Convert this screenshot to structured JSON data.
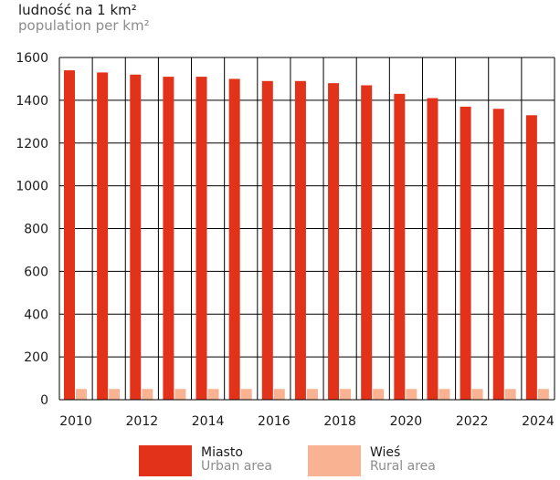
{
  "chart_data": {
    "type": "bar",
    "title": "",
    "ylabel": "ludność na 1 km²",
    "ylabel_en": "population per km²",
    "xlabel": "",
    "categories": [
      "2010",
      "2011",
      "2012",
      "2013",
      "2014",
      "2015",
      "2016",
      "2017",
      "2018",
      "2019",
      "2020",
      "2021",
      "2022",
      "2023",
      "2024"
    ],
    "x_tick_labels": [
      "2010",
      "2012",
      "2014",
      "2016",
      "2018",
      "2020",
      "2022",
      "2024"
    ],
    "y_ticks": [
      0,
      200,
      400,
      600,
      800,
      1000,
      1200,
      1400,
      1600
    ],
    "ylim": [
      0,
      1600
    ],
    "grid": true,
    "legend_position": "bottom",
    "series": [
      {
        "name": "Miasto",
        "name_en": "Urban area",
        "color": "#e2321a",
        "values": [
          1540,
          1530,
          1520,
          1510,
          1510,
          1500,
          1490,
          1490,
          1480,
          1470,
          1430,
          1410,
          1370,
          1360,
          1330
        ]
      },
      {
        "name": "Wieś",
        "name_en": "Rural area",
        "color": "#f9b392",
        "values": [
          50,
          50,
          50,
          50,
          50,
          50,
          50,
          50,
          50,
          50,
          50,
          50,
          50,
          50,
          50
        ]
      }
    ]
  }
}
